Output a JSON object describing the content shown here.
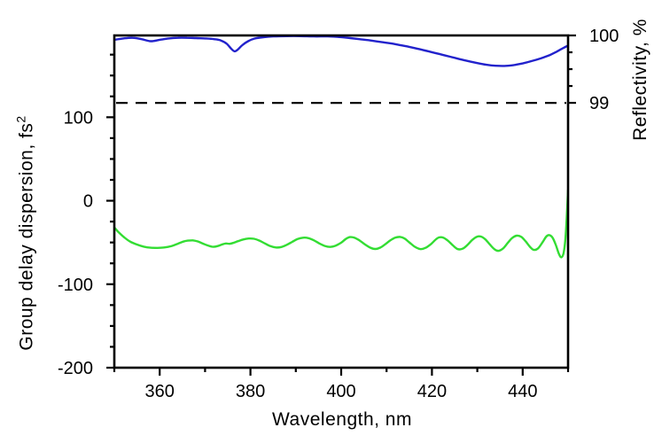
{
  "chart_data": {
    "type": "line",
    "title": "",
    "xlabel": "Wavelength, nm",
    "ylabel_left": {
      "text": "Group delay dispersion, fs",
      "sup": "2"
    },
    "ylabel_right": "Reflectivity, %",
    "grid": false,
    "legend": null,
    "x_axis": {
      "min": 350,
      "max": 450,
      "major_ticks": [
        360,
        380,
        400,
        420,
        440
      ],
      "minor_ticks": [
        350,
        370,
        390,
        410,
        430,
        450
      ]
    },
    "y_left_axis": {
      "min": -200,
      "max": 198,
      "major_ticks": [
        100,
        0,
        -100,
        -200
      ],
      "minor_ticks": [
        175,
        150,
        125,
        75,
        50,
        25,
        -25,
        -50,
        -75,
        -125,
        -150,
        -175
      ]
    },
    "y_right_axis": {
      "min": 95.07,
      "max": 100,
      "major_ticks": [
        100,
        99
      ],
      "minor_ticks": [
        99.75,
        99.5,
        99.25
      ]
    },
    "reference_line": {
      "axis": "right",
      "value": 99,
      "style": "dashed",
      "color": "#000000"
    },
    "series": [
      {
        "name": "Reflectivity",
        "axis": "right",
        "color": "#2222cc",
        "points": [
          [
            350,
            99.935
          ],
          [
            352,
            99.955
          ],
          [
            354,
            99.965
          ],
          [
            356,
            99.945
          ],
          [
            358,
            99.915
          ],
          [
            360,
            99.935
          ],
          [
            362,
            99.955
          ],
          [
            364,
            99.965
          ],
          [
            366,
            99.965
          ],
          [
            368,
            99.96
          ],
          [
            370,
            99.955
          ],
          [
            372,
            99.945
          ],
          [
            373.5,
            99.925
          ],
          [
            374.8,
            99.875
          ],
          [
            375.8,
            99.8
          ],
          [
            376.5,
            99.765
          ],
          [
            377.2,
            99.79
          ],
          [
            378.2,
            99.855
          ],
          [
            379.5,
            99.915
          ],
          [
            381,
            99.955
          ],
          [
            383,
            99.975
          ],
          [
            385,
            99.985
          ],
          [
            388,
            99.99
          ],
          [
            391,
            99.99
          ],
          [
            394,
            99.985
          ],
          [
            397,
            99.985
          ],
          [
            400,
            99.975
          ],
          [
            402,
            99.96
          ],
          [
            404,
            99.945
          ],
          [
            406,
            99.93
          ],
          [
            409,
            99.9
          ],
          [
            412,
            99.87
          ],
          [
            415,
            99.83
          ],
          [
            418,
            99.785
          ],
          [
            421,
            99.735
          ],
          [
            424,
            99.685
          ],
          [
            427,
            99.635
          ],
          [
            430,
            99.59
          ],
          [
            432,
            99.565
          ],
          [
            434,
            99.55
          ],
          [
            436,
            99.548
          ],
          [
            438,
            99.56
          ],
          [
            440,
            99.585
          ],
          [
            442,
            99.62
          ],
          [
            444,
            99.66
          ],
          [
            446,
            99.71
          ],
          [
            447.5,
            99.76
          ],
          [
            449,
            99.815
          ],
          [
            450,
            99.85
          ]
        ]
      },
      {
        "name": "Group delay dispersion",
        "axis": "left",
        "color": "#33dd33",
        "points": [
          [
            350,
            -32
          ],
          [
            351,
            -38
          ],
          [
            352.2,
            -44
          ],
          [
            353.5,
            -49
          ],
          [
            355,
            -52.5
          ],
          [
            356.5,
            -55
          ],
          [
            358,
            -56.3
          ],
          [
            359.5,
            -56.5
          ],
          [
            361,
            -56
          ],
          [
            362.5,
            -54.5
          ],
          [
            364,
            -51.5
          ],
          [
            365.2,
            -49
          ],
          [
            366.2,
            -47.8
          ],
          [
            367.3,
            -47.5
          ],
          [
            368.4,
            -48.8
          ],
          [
            369.6,
            -51.5
          ],
          [
            370.8,
            -54
          ],
          [
            371.8,
            -55.2
          ],
          [
            372.8,
            -54.3
          ],
          [
            373.8,
            -52.3
          ],
          [
            374.6,
            -51.2
          ],
          [
            375.4,
            -51.6
          ],
          [
            376.2,
            -50.6
          ],
          [
            377.2,
            -48.6
          ],
          [
            378.4,
            -46.4
          ],
          [
            379.6,
            -45.3
          ],
          [
            380.8,
            -45.6
          ],
          [
            382,
            -47.8
          ],
          [
            383.2,
            -51.2
          ],
          [
            384.4,
            -54.4
          ],
          [
            385.6,
            -56
          ],
          [
            386.8,
            -55.4
          ],
          [
            388,
            -52.8
          ],
          [
            389.2,
            -49.3
          ],
          [
            390.4,
            -45.9
          ],
          [
            391.6,
            -44.3
          ],
          [
            392.8,
            -44.8
          ],
          [
            394,
            -47.5
          ],
          [
            395.2,
            -51.2
          ],
          [
            396.4,
            -54.2
          ],
          [
            397.6,
            -55.3
          ],
          [
            398.8,
            -53.8
          ],
          [
            400,
            -50.2
          ],
          [
            401,
            -45.9
          ],
          [
            401.9,
            -43.6
          ],
          [
            402.9,
            -44.2
          ],
          [
            404,
            -47.4
          ],
          [
            405.2,
            -52.2
          ],
          [
            406.4,
            -56.2
          ],
          [
            407.5,
            -57.8
          ],
          [
            408.6,
            -56.2
          ],
          [
            409.7,
            -52.2
          ],
          [
            410.8,
            -47.6
          ],
          [
            411.9,
            -44.3
          ],
          [
            413,
            -43.4
          ],
          [
            414,
            -45.4
          ],
          [
            415,
            -49.8
          ],
          [
            416.2,
            -55
          ],
          [
            417.4,
            -57.9
          ],
          [
            418.6,
            -56.4
          ],
          [
            419.8,
            -51.8
          ],
          [
            420.8,
            -46.6
          ],
          [
            421.6,
            -43.9
          ],
          [
            422.5,
            -44.3
          ],
          [
            423.5,
            -47.8
          ],
          [
            424.6,
            -53.4
          ],
          [
            425.7,
            -58
          ],
          [
            426.8,
            -57.4
          ],
          [
            427.9,
            -52.6
          ],
          [
            428.9,
            -46.8
          ],
          [
            429.9,
            -43.1
          ],
          [
            430.8,
            -42.9
          ],
          [
            431.8,
            -46.4
          ],
          [
            432.8,
            -52.6
          ],
          [
            433.8,
            -58.2
          ],
          [
            434.7,
            -60
          ],
          [
            435.7,
            -57
          ],
          [
            436.7,
            -50.6
          ],
          [
            437.7,
            -44.6
          ],
          [
            438.7,
            -41.9
          ],
          [
            439.7,
            -43.4
          ],
          [
            440.7,
            -49
          ],
          [
            441.7,
            -55.8
          ],
          [
            442.5,
            -58.9
          ],
          [
            443.4,
            -57
          ],
          [
            444.3,
            -50.4
          ],
          [
            445.2,
            -42.9
          ],
          [
            445.9,
            -41.2
          ],
          [
            446.6,
            -44.4
          ],
          [
            447.3,
            -53
          ],
          [
            448,
            -63.9
          ],
          [
            448.5,
            -67.8
          ],
          [
            449,
            -63
          ],
          [
            449.4,
            -47
          ],
          [
            449.7,
            -20
          ],
          [
            450,
            13
          ]
        ]
      }
    ]
  }
}
